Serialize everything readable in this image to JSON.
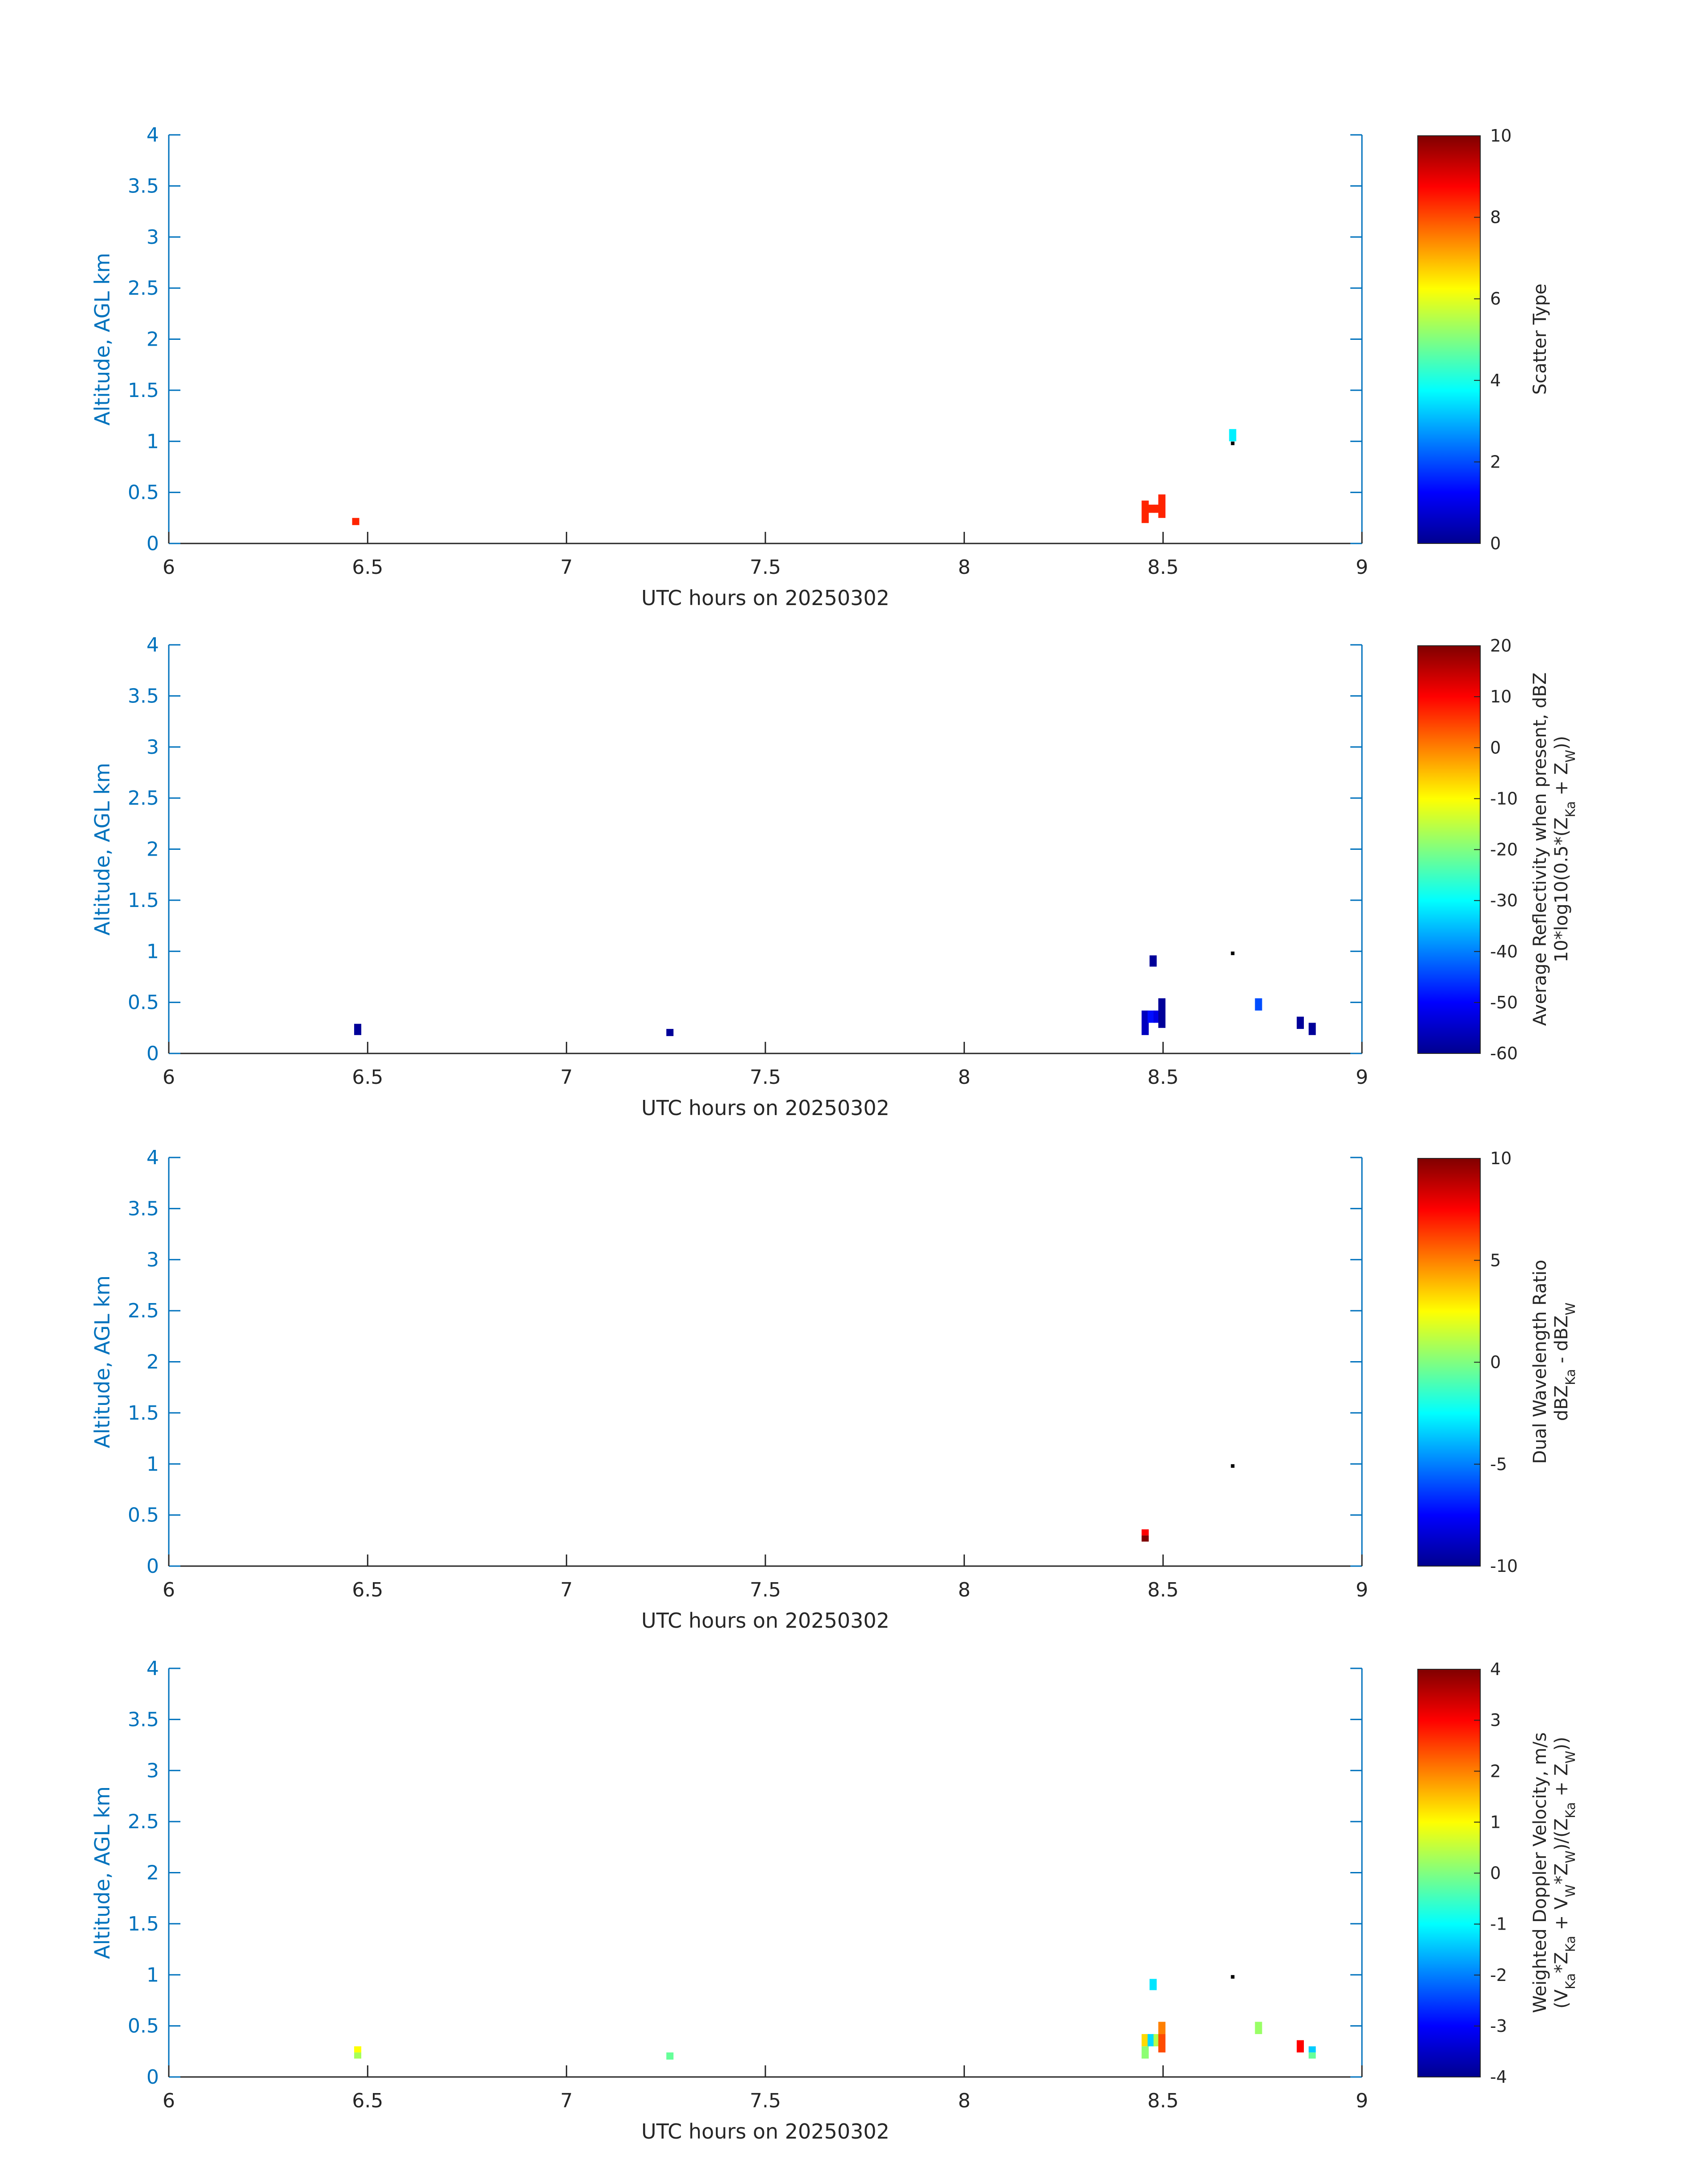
{
  "figure": {
    "background": "#ffffff",
    "axis_color": "#0072BD",
    "xaxis_color": "#262626"
  },
  "chart_data": [
    {
      "type": "heatmap",
      "xlabel": "UTC hours on 20250302",
      "ylabel": "Altitude, AGL km",
      "xlim": [
        6,
        9
      ],
      "ylim": [
        0,
        4
      ],
      "xticks": [
        "6",
        "6.5",
        "7",
        "7.5",
        "8",
        "8.5",
        "9"
      ],
      "yticks": [
        "0",
        "0.5",
        "1",
        "1.5",
        "2",
        "2.5",
        "3",
        "3.5",
        "4"
      ],
      "colorbar": {
        "label_lines": [
          "Scatter Type"
        ],
        "clim": [
          0,
          10
        ],
        "ticks": [
          "0",
          "2",
          "4",
          "6",
          "8",
          "10"
        ]
      },
      "cells": [
        {
          "x": 6.47,
          "y0": 0.18,
          "y1": 0.25,
          "v": 8.4
        },
        {
          "x": 8.455,
          "y0": 0.2,
          "y1": 0.42,
          "v": 8.4
        },
        {
          "x": 8.47,
          "y0": 0.3,
          "y1": 0.38,
          "v": 8.4
        },
        {
          "x": 8.485,
          "y0": 0.3,
          "y1": 0.38,
          "v": 8.4
        },
        {
          "x": 8.497,
          "y0": 0.25,
          "y1": 0.48,
          "v": 8.4
        },
        {
          "x": 8.675,
          "y0": 1.0,
          "y1": 1.12,
          "v": 3.6
        }
      ],
      "dots": [
        {
          "x": 8.675,
          "y": 0.98
        }
      ]
    },
    {
      "type": "heatmap",
      "xlabel": "UTC hours on 20250302",
      "ylabel": "Altitude, AGL km",
      "xlim": [
        6,
        9
      ],
      "ylim": [
        0,
        4
      ],
      "xticks": [
        "6",
        "6.5",
        "7",
        "7.5",
        "8",
        "8.5",
        "9"
      ],
      "yticks": [
        "0",
        "0.5",
        "1",
        "1.5",
        "2",
        "2.5",
        "3",
        "3.5",
        "4"
      ],
      "colorbar": {
        "label_lines": [
          "Average Reflectivity when present, dBZ",
          "10*log10(0.5*(Z_Ka + Z_W))"
        ],
        "clim": [
          -60,
          20
        ],
        "ticks": [
          "-60",
          "-50",
          "-40",
          "-30",
          "-20",
          "-10",
          "0",
          "10",
          "20"
        ]
      },
      "cells": [
        {
          "x": 6.475,
          "y0": 0.18,
          "y1": 0.29,
          "v": -58
        },
        {
          "x": 7.26,
          "y0": 0.17,
          "y1": 0.24,
          "v": -58
        },
        {
          "x": 8.455,
          "y0": 0.18,
          "y1": 0.42,
          "v": -55
        },
        {
          "x": 8.47,
          "y0": 0.3,
          "y1": 0.42,
          "v": -49
        },
        {
          "x": 8.475,
          "y0": 0.85,
          "y1": 0.96,
          "v": -58
        },
        {
          "x": 8.485,
          "y0": 0.3,
          "y1": 0.42,
          "v": -52
        },
        {
          "x": 8.497,
          "y0": 0.25,
          "y1": 0.54,
          "v": -58
        },
        {
          "x": 8.74,
          "y0": 0.42,
          "y1": 0.54,
          "v": -44
        },
        {
          "x": 8.845,
          "y0": 0.24,
          "y1": 0.36,
          "v": -58
        },
        {
          "x": 8.875,
          "y0": 0.18,
          "y1": 0.3,
          "v": -58
        }
      ],
      "dots": [
        {
          "x": 8.675,
          "y": 0.98
        }
      ]
    },
    {
      "type": "heatmap",
      "xlabel": "UTC hours on 20250302",
      "ylabel": "Altitude, AGL km",
      "xlim": [
        6,
        9
      ],
      "ylim": [
        0,
        4
      ],
      "xticks": [
        "6",
        "6.5",
        "7",
        "7.5",
        "8",
        "8.5",
        "9"
      ],
      "yticks": [
        "0",
        "0.5",
        "1",
        "1.5",
        "2",
        "2.5",
        "3",
        "3.5",
        "4"
      ],
      "colorbar": {
        "label_lines": [
          "Dual Wavelength Ratio",
          "dBZ_Ka - dBZ_W"
        ],
        "clim": [
          -10,
          10
        ],
        "ticks": [
          "-10",
          "-5",
          "0",
          "5",
          "10"
        ]
      },
      "cells": [
        {
          "x": 8.455,
          "y0": 0.3,
          "y1": 0.36,
          "v": 7.5
        },
        {
          "x": 8.455,
          "y0": 0.24,
          "y1": 0.3,
          "v": 10
        }
      ],
      "dots": [
        {
          "x": 8.675,
          "y": 0.98
        }
      ]
    },
    {
      "type": "heatmap",
      "xlabel": "UTC hours on 20250302",
      "ylabel": "Altitude, AGL km",
      "xlim": [
        6,
        9
      ],
      "ylim": [
        0,
        4
      ],
      "xticks": [
        "6",
        "6.5",
        "7",
        "7.5",
        "8",
        "8.5",
        "9"
      ],
      "yticks": [
        "0",
        "0.5",
        "1",
        "1.5",
        "2",
        "2.5",
        "3",
        "3.5",
        "4"
      ],
      "colorbar": {
        "label_lines": [
          "Weighted Doppler Velocity, m/s",
          "(V_Ka*Z_Ka + V_W*Z_W)/(Z_Ka + Z_W))"
        ],
        "clim": [
          -4,
          4
        ],
        "ticks": [
          "-4",
          "-3",
          "-2",
          "-1",
          "0",
          "1",
          "2",
          "3",
          "4"
        ]
      },
      "cells": [
        {
          "x": 6.475,
          "y0": 0.24,
          "y1": 0.3,
          "v": 1.0
        },
        {
          "x": 6.475,
          "y0": 0.18,
          "y1": 0.24,
          "v": 0.3
        },
        {
          "x": 7.26,
          "y0": 0.17,
          "y1": 0.24,
          "v": -0.2
        },
        {
          "x": 8.455,
          "y0": 0.3,
          "y1": 0.42,
          "v": 1.3
        },
        {
          "x": 8.455,
          "y0": 0.18,
          "y1": 0.3,
          "v": 0.1
        },
        {
          "x": 8.47,
          "y0": 0.3,
          "y1": 0.42,
          "v": -1.3
        },
        {
          "x": 8.475,
          "y0": 0.85,
          "y1": 0.96,
          "v": -1.2
        },
        {
          "x": 8.485,
          "y0": 0.3,
          "y1": 0.42,
          "v": 0.4
        },
        {
          "x": 8.497,
          "y0": 0.42,
          "y1": 0.54,
          "v": 2.0
        },
        {
          "x": 8.497,
          "y0": 0.24,
          "y1": 0.42,
          "v": 2.4
        },
        {
          "x": 8.74,
          "y0": 0.42,
          "y1": 0.54,
          "v": 0.2
        },
        {
          "x": 8.845,
          "y0": 0.24,
          "y1": 0.36,
          "v": 3.0
        },
        {
          "x": 8.875,
          "y0": 0.24,
          "y1": 0.3,
          "v": -1.4
        },
        {
          "x": 8.875,
          "y0": 0.18,
          "y1": 0.24,
          "v": -0.2
        }
      ],
      "dots": [
        {
          "x": 8.675,
          "y": 0.98
        }
      ]
    }
  ]
}
